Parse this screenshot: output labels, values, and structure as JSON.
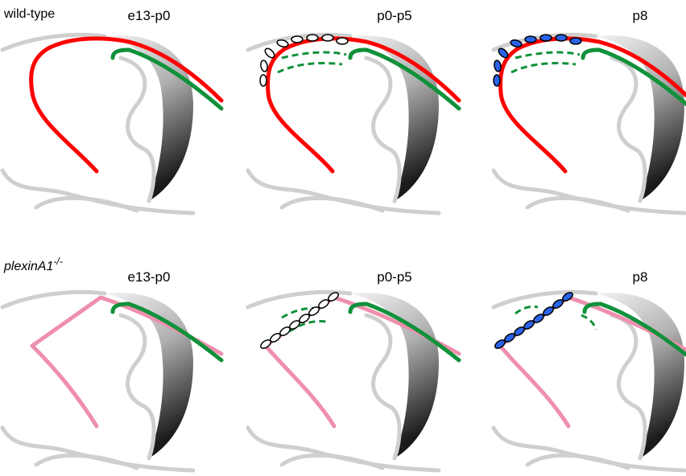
{
  "top_row": {
    "label": "wild-type",
    "stages": [
      "e13-p0",
      "p0-p5",
      "p8"
    ]
  },
  "bottom_row": {
    "label": "plexinA1",
    "label_superscript": "-/-",
    "stages": [
      "e13-p0",
      "p0-p5",
      "p8"
    ]
  }
}
